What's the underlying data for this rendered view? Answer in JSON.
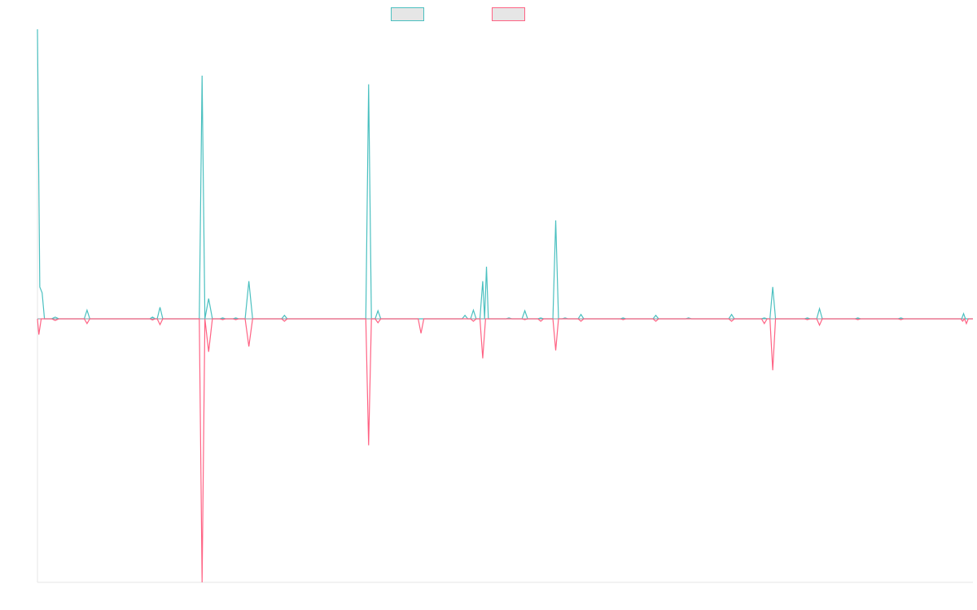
{
  "chart_data": {
    "type": "line",
    "title": "",
    "xlabel": "",
    "ylabel": "",
    "grid": false,
    "legend": "top-center",
    "ylim": [
      -100,
      105
    ],
    "xlim": [
      0,
      200
    ],
    "series": [
      {
        "color": "#4bc0c0",
        "points": [
          [
            0,
            100
          ],
          [
            0.5,
            11
          ],
          [
            1,
            9
          ],
          [
            1.5,
            0
          ],
          [
            3,
            0
          ],
          [
            3.8,
            0.6
          ],
          [
            4.6,
            0
          ],
          [
            10,
            0
          ],
          [
            10.6,
            3
          ],
          [
            11.2,
            0
          ],
          [
            24,
            0
          ],
          [
            24.6,
            0.6
          ],
          [
            25.2,
            0
          ],
          [
            25.6,
            0
          ],
          [
            26.2,
            4
          ],
          [
            26.8,
            0
          ],
          [
            34.6,
            0
          ],
          [
            35.2,
            84
          ],
          [
            35.8,
            0
          ],
          [
            36.6,
            7
          ],
          [
            37.4,
            0
          ],
          [
            39,
            0
          ],
          [
            39.6,
            0.3
          ],
          [
            40.2,
            0
          ],
          [
            41.8,
            0
          ],
          [
            42.4,
            0.3
          ],
          [
            43,
            0
          ],
          [
            44.4,
            0
          ],
          [
            45.2,
            13
          ],
          [
            46,
            0
          ],
          [
            52.2,
            0
          ],
          [
            52.8,
            1.2
          ],
          [
            53.4,
            0
          ],
          [
            70.2,
            0
          ],
          [
            70.8,
            81
          ],
          [
            71.4,
            0
          ],
          [
            72.2,
            0
          ],
          [
            72.8,
            2.8
          ],
          [
            73.4,
            0
          ],
          [
            90.8,
            0
          ],
          [
            91.4,
            1.2
          ],
          [
            92,
            0
          ],
          [
            92.6,
            0
          ],
          [
            93.2,
            3
          ],
          [
            93.8,
            0
          ],
          [
            94.6,
            0
          ],
          [
            95.2,
            13
          ],
          [
            95.6,
            0
          ],
          [
            96,
            18
          ],
          [
            96.4,
            0
          ],
          [
            100.2,
            0
          ],
          [
            100.8,
            0.3
          ],
          [
            101.4,
            0
          ],
          [
            103.6,
            0
          ],
          [
            104.2,
            2.8
          ],
          [
            104.8,
            0
          ],
          [
            107,
            0
          ],
          [
            107.6,
            0.3
          ],
          [
            108.2,
            0
          ],
          [
            110.2,
            0
          ],
          [
            110.8,
            34
          ],
          [
            111.4,
            0
          ],
          [
            112.2,
            0
          ],
          [
            112.8,
            0.3
          ],
          [
            113.4,
            0
          ],
          [
            115.6,
            0
          ],
          [
            116.2,
            1.5
          ],
          [
            116.8,
            0
          ],
          [
            124.6,
            0
          ],
          [
            125.2,
            0.3
          ],
          [
            125.8,
            0
          ],
          [
            131.6,
            0
          ],
          [
            132.2,
            1.2
          ],
          [
            132.8,
            0
          ],
          [
            138.6,
            0
          ],
          [
            139.2,
            0.3
          ],
          [
            139.8,
            0
          ],
          [
            147.8,
            0
          ],
          [
            148.4,
            1.5
          ],
          [
            149,
            0
          ],
          [
            154.8,
            0
          ],
          [
            155.4,
            0.3
          ],
          [
            156,
            0
          ],
          [
            156.6,
            0
          ],
          [
            157.2,
            11
          ],
          [
            157.8,
            0
          ],
          [
            164,
            0
          ],
          [
            164.6,
            0.3
          ],
          [
            165.2,
            0
          ],
          [
            166.6,
            0
          ],
          [
            167.2,
            3.5
          ],
          [
            167.8,
            0
          ],
          [
            174.8,
            0
          ],
          [
            175.4,
            0.3
          ],
          [
            176,
            0
          ],
          [
            184,
            0
          ],
          [
            184.6,
            0.3
          ],
          [
            185.2,
            0
          ],
          [
            197.6,
            0
          ],
          [
            198,
            1.8
          ],
          [
            198.4,
            0
          ],
          [
            200,
            0
          ]
        ]
      },
      {
        "color": "#ff6384",
        "points": [
          [
            0,
            0
          ],
          [
            0.3,
            -6
          ],
          [
            0.8,
            0
          ],
          [
            3,
            0
          ],
          [
            3.8,
            -0.6
          ],
          [
            4.6,
            0
          ],
          [
            10,
            0
          ],
          [
            10.6,
            -1.8
          ],
          [
            11.2,
            0
          ],
          [
            24,
            0
          ],
          [
            24.6,
            -0.4
          ],
          [
            25.2,
            0
          ],
          [
            25.6,
            0
          ],
          [
            26.2,
            -2.2
          ],
          [
            26.8,
            0
          ],
          [
            34.6,
            0
          ],
          [
            35.2,
            -100
          ],
          [
            35.8,
            0
          ],
          [
            36.6,
            -12.5
          ],
          [
            37.4,
            0
          ],
          [
            39,
            0
          ],
          [
            39.6,
            -0.3
          ],
          [
            40.2,
            0
          ],
          [
            41.8,
            0
          ],
          [
            42.4,
            -0.3
          ],
          [
            43,
            0
          ],
          [
            44.4,
            0
          ],
          [
            45.2,
            -10.5
          ],
          [
            46,
            0
          ],
          [
            52.2,
            0
          ],
          [
            52.8,
            -0.9
          ],
          [
            53.4,
            0
          ],
          [
            70.2,
            0
          ],
          [
            70.8,
            -48
          ],
          [
            71.4,
            0
          ],
          [
            72.2,
            0
          ],
          [
            72.8,
            -1.5
          ],
          [
            73.4,
            0
          ],
          [
            81.4,
            0
          ],
          [
            82,
            -5.5
          ],
          [
            82.6,
            0
          ],
          [
            92.6,
            0
          ],
          [
            93.2,
            -0.9
          ],
          [
            93.8,
            0
          ],
          [
            94.6,
            0
          ],
          [
            95.2,
            -15
          ],
          [
            95.8,
            0
          ],
          [
            103.6,
            0
          ],
          [
            104.2,
            -0.3
          ],
          [
            104.8,
            0
          ],
          [
            107,
            0
          ],
          [
            107.6,
            -0.9
          ],
          [
            108.2,
            0
          ],
          [
            110.2,
            0
          ],
          [
            110.8,
            -12
          ],
          [
            111.4,
            0
          ],
          [
            115.6,
            0
          ],
          [
            116.2,
            -0.9
          ],
          [
            116.8,
            0
          ],
          [
            124.6,
            0
          ],
          [
            125.2,
            -0.3
          ],
          [
            125.8,
            0
          ],
          [
            131.6,
            0
          ],
          [
            132.2,
            -0.9
          ],
          [
            132.8,
            0
          ],
          [
            147.8,
            0
          ],
          [
            148.4,
            -0.9
          ],
          [
            149,
            0
          ],
          [
            154.8,
            0
          ],
          [
            155.4,
            -1.8
          ],
          [
            156,
            0
          ],
          [
            156.6,
            0
          ],
          [
            157.2,
            -19.5
          ],
          [
            157.8,
            0
          ],
          [
            164,
            0
          ],
          [
            164.6,
            -0.3
          ],
          [
            165.2,
            0
          ],
          [
            166.6,
            0
          ],
          [
            167.2,
            -2.4
          ],
          [
            167.8,
            0
          ],
          [
            174.8,
            0
          ],
          [
            175.4,
            -0.3
          ],
          [
            176,
            0
          ],
          [
            184,
            0
          ],
          [
            184.6,
            -0.3
          ],
          [
            185.2,
            0
          ],
          [
            197.4,
            0
          ],
          [
            197.8,
            -0.9
          ],
          [
            198.2,
            0
          ],
          [
            198.6,
            -1.8
          ],
          [
            199,
            0
          ],
          [
            200,
            0
          ]
        ]
      }
    ]
  }
}
